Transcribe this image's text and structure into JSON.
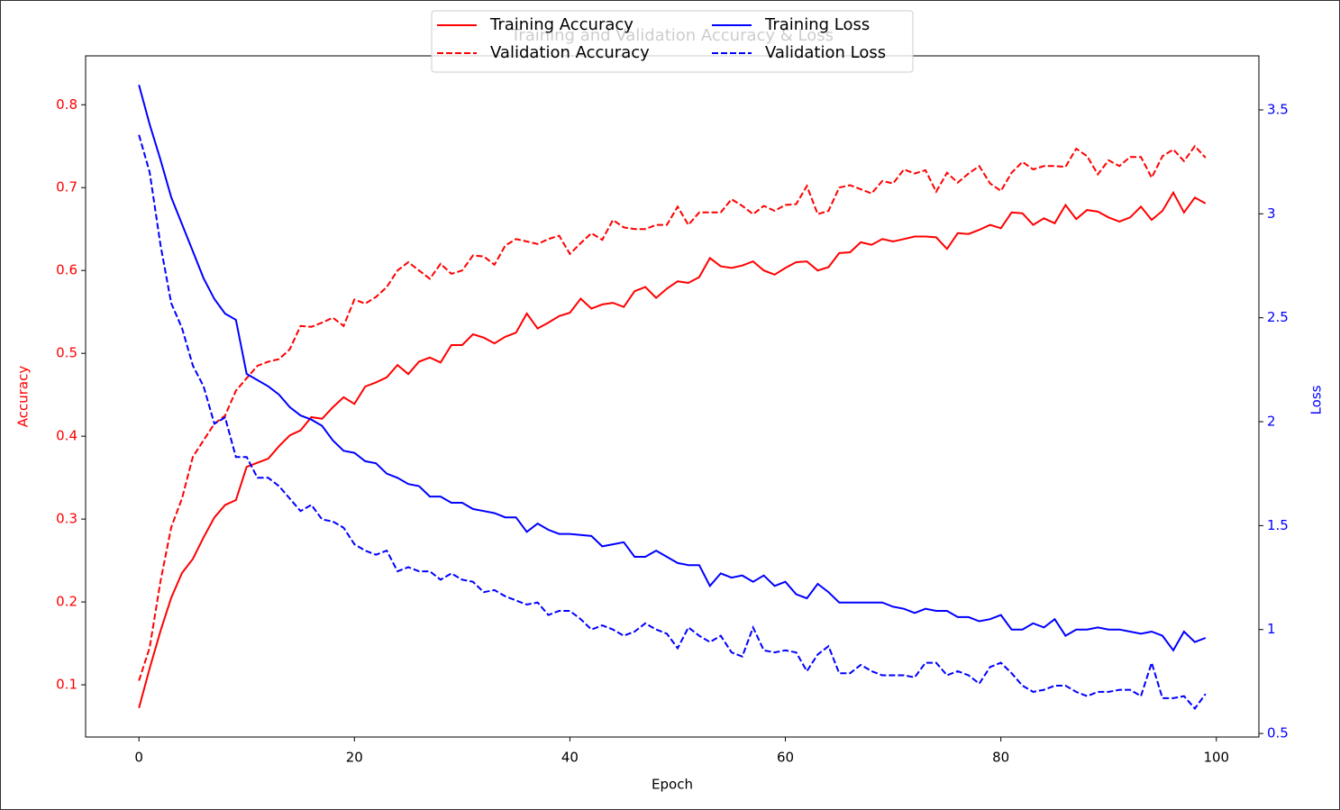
{
  "chart_data": {
    "type": "line",
    "title": "Training and Validation Accuracy & Loss",
    "xlabel": "Epoch",
    "ylabel": "Accuracy",
    "y2label": "Loss",
    "x": [
      0,
      1,
      2,
      3,
      4,
      5,
      6,
      7,
      8,
      9,
      10,
      11,
      12,
      13,
      14,
      15,
      16,
      17,
      18,
      19,
      20,
      21,
      22,
      23,
      24,
      25,
      26,
      27,
      28,
      29,
      30,
      31,
      32,
      33,
      34,
      35,
      36,
      37,
      38,
      39,
      40,
      41,
      42,
      43,
      44,
      45,
      46,
      47,
      48,
      49,
      50,
      51,
      52,
      53,
      54,
      55,
      56,
      57,
      58,
      59,
      60,
      61,
      62,
      63,
      64,
      65,
      66,
      67,
      68,
      69,
      70,
      71,
      72,
      73,
      74,
      75,
      76,
      77,
      78,
      79,
      80,
      81,
      82,
      83,
      84,
      85,
      86,
      87,
      88,
      89,
      90,
      91,
      92,
      93,
      94,
      95,
      96,
      97,
      98,
      99
    ],
    "xlim": [
      -4.95,
      103.95
    ],
    "xticks": [
      0,
      20,
      40,
      60,
      80,
      100
    ],
    "ylim": [
      0.037,
      0.859
    ],
    "yticks": [
      0.1,
      0.2,
      0.3,
      0.4,
      0.5,
      0.6,
      0.7,
      0.8
    ],
    "y2lim": [
      0.483,
      3.76
    ],
    "y2ticks": [
      0.5,
      1.0,
      1.5,
      2.0,
      2.5,
      3.0,
      3.5
    ],
    "ycolor": "red",
    "y2color": "blue",
    "legend": "upper center",
    "series": [
      {
        "name": "Training Accuracy",
        "color": "red",
        "axis": "y",
        "linestyle": "solid",
        "values": [
          0.072,
          0.12,
          0.165,
          0.205,
          0.235,
          0.252,
          0.278,
          0.302,
          0.317,
          0.323,
          0.363,
          0.368,
          0.373,
          0.388,
          0.401,
          0.407,
          0.423,
          0.421,
          0.435,
          0.447,
          0.439,
          0.46,
          0.465,
          0.471,
          0.486,
          0.475,
          0.49,
          0.495,
          0.489,
          0.51,
          0.51,
          0.523,
          0.519,
          0.512,
          0.52,
          0.525,
          0.548,
          0.53,
          0.537,
          0.545,
          0.549,
          0.566,
          0.554,
          0.559,
          0.561,
          0.556,
          0.575,
          0.58,
          0.567,
          0.578,
          0.587,
          0.585,
          0.592,
          0.615,
          0.605,
          0.603,
          0.606,
          0.611,
          0.6,
          0.595,
          0.603,
          0.61,
          0.611,
          0.6,
          0.604,
          0.621,
          0.622,
          0.634,
          0.631,
          0.638,
          0.635,
          0.638,
          0.641,
          0.641,
          0.64,
          0.626,
          0.645,
          0.644,
          0.649,
          0.655,
          0.651,
          0.67,
          0.669,
          0.655,
          0.663,
          0.657,
          0.679,
          0.662,
          0.673,
          0.671,
          0.664,
          0.659,
          0.664,
          0.677,
          0.661,
          0.672,
          0.694,
          0.67,
          0.688,
          0.681
        ]
      },
      {
        "name": "Validation Accuracy",
        "color": "red",
        "axis": "y",
        "linestyle": "dashed",
        "values": [
          0.105,
          0.145,
          0.225,
          0.29,
          0.325,
          0.375,
          0.395,
          0.415,
          0.425,
          0.455,
          0.47,
          0.485,
          0.49,
          0.493,
          0.505,
          0.533,
          0.532,
          0.537,
          0.543,
          0.533,
          0.565,
          0.56,
          0.568,
          0.58,
          0.6,
          0.61,
          0.6,
          0.59,
          0.608,
          0.596,
          0.6,
          0.618,
          0.617,
          0.607,
          0.63,
          0.638,
          0.635,
          0.632,
          0.638,
          0.642,
          0.62,
          0.633,
          0.645,
          0.637,
          0.661,
          0.652,
          0.65,
          0.65,
          0.655,
          0.655,
          0.677,
          0.655,
          0.67,
          0.67,
          0.67,
          0.686,
          0.678,
          0.668,
          0.678,
          0.672,
          0.679,
          0.68,
          0.702,
          0.668,
          0.672,
          0.7,
          0.703,
          0.698,
          0.693,
          0.708,
          0.705,
          0.722,
          0.717,
          0.721,
          0.695,
          0.718,
          0.706,
          0.717,
          0.726,
          0.705,
          0.696,
          0.718,
          0.731,
          0.722,
          0.726,
          0.726,
          0.725,
          0.747,
          0.738,
          0.716,
          0.733,
          0.726,
          0.737,
          0.737,
          0.712,
          0.738,
          0.746,
          0.732,
          0.75,
          0.736
        ]
      },
      {
        "name": "Training Loss",
        "color": "blue",
        "axis": "y2",
        "linestyle": "solid",
        "values": [
          3.62,
          3.43,
          3.26,
          3.08,
          2.95,
          2.82,
          2.69,
          2.59,
          2.52,
          2.49,
          2.23,
          2.2,
          2.17,
          2.13,
          2.07,
          2.03,
          2.01,
          1.98,
          1.91,
          1.86,
          1.85,
          1.81,
          1.8,
          1.75,
          1.73,
          1.7,
          1.69,
          1.64,
          1.64,
          1.61,
          1.61,
          1.58,
          1.57,
          1.56,
          1.54,
          1.54,
          1.47,
          1.51,
          1.48,
          1.46,
          1.46,
          1.455,
          1.45,
          1.4,
          1.41,
          1.42,
          1.35,
          1.35,
          1.38,
          1.35,
          1.32,
          1.31,
          1.31,
          1.21,
          1.27,
          1.25,
          1.26,
          1.23,
          1.26,
          1.21,
          1.23,
          1.17,
          1.15,
          1.22,
          1.18,
          1.13,
          1.13,
          1.13,
          1.13,
          1.13,
          1.11,
          1.1,
          1.08,
          1.1,
          1.09,
          1.09,
          1.06,
          1.06,
          1.04,
          1.05,
          1.07,
          1.0,
          1.0,
          1.03,
          1.01,
          1.05,
          0.97,
          1.0,
          1.0,
          1.01,
          1.0,
          1.0,
          0.99,
          0.98,
          0.99,
          0.97,
          0.9,
          0.99,
          0.94,
          0.96
        ]
      },
      {
        "name": "Validation Loss",
        "color": "blue",
        "axis": "y2",
        "linestyle": "dashed",
        "values": [
          3.38,
          3.2,
          2.85,
          2.57,
          2.45,
          2.27,
          2.17,
          1.99,
          2.02,
          1.83,
          1.83,
          1.73,
          1.73,
          1.69,
          1.63,
          1.57,
          1.6,
          1.53,
          1.52,
          1.49,
          1.41,
          1.38,
          1.36,
          1.38,
          1.28,
          1.3,
          1.28,
          1.28,
          1.24,
          1.27,
          1.24,
          1.23,
          1.18,
          1.19,
          1.16,
          1.14,
          1.12,
          1.13,
          1.07,
          1.09,
          1.09,
          1.05,
          1.0,
          1.02,
          1.0,
          0.97,
          0.99,
          1.03,
          1.0,
          0.98,
          0.91,
          1.01,
          0.97,
          0.94,
          0.97,
          0.89,
          0.87,
          1.01,
          0.9,
          0.89,
          0.9,
          0.89,
          0.8,
          0.88,
          0.92,
          0.79,
          0.79,
          0.83,
          0.8,
          0.78,
          0.78,
          0.78,
          0.77,
          0.84,
          0.84,
          0.78,
          0.8,
          0.78,
          0.74,
          0.82,
          0.84,
          0.79,
          0.73,
          0.7,
          0.71,
          0.73,
          0.73,
          0.7,
          0.68,
          0.7,
          0.7,
          0.71,
          0.71,
          0.68,
          0.84,
          0.67,
          0.67,
          0.68,
          0.62,
          0.69
        ]
      }
    ]
  }
}
